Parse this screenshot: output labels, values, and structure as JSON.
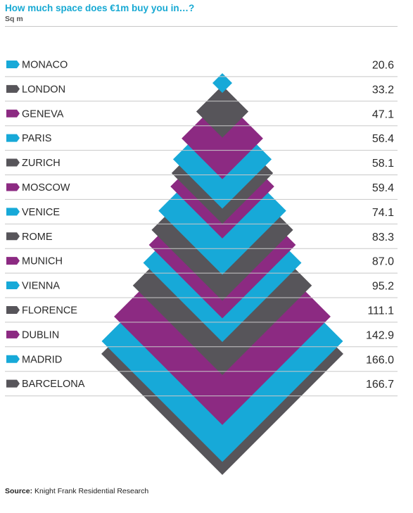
{
  "header": {
    "title": "How much space does €1m buy you in…?",
    "subtitle": "Sq m"
  },
  "footer": {
    "source_label": "Source:",
    "source_text": "Knight Frank Residential Research"
  },
  "colors": {
    "blue": "#17a9d8",
    "gray": "#57555a",
    "purple": "#8c2a82",
    "rule": "#c8c8c8"
  },
  "chart_data": {
    "type": "diamond-pictogram",
    "unit": "Sq m",
    "cities": [
      {
        "name": "MONACO",
        "value": 20.6,
        "color": "blue"
      },
      {
        "name": "LONDON",
        "value": 33.2,
        "color": "gray"
      },
      {
        "name": "GENEVA",
        "value": 47.1,
        "color": "purple"
      },
      {
        "name": "PARIS",
        "value": 56.4,
        "color": "blue"
      },
      {
        "name": "ZURICH",
        "value": 58.1,
        "color": "gray"
      },
      {
        "name": "MOSCOW",
        "value": 59.4,
        "color": "purple"
      },
      {
        "name": "VENICE",
        "value": 74.1,
        "color": "blue"
      },
      {
        "name": "ROME",
        "value": 83.3,
        "color": "gray"
      },
      {
        "name": "MUNICH",
        "value": 87.0,
        "color": "purple"
      },
      {
        "name": "VIENNA",
        "value": 95.2,
        "color": "blue"
      },
      {
        "name": "FLORENCE",
        "value": 111.1,
        "color": "gray"
      },
      {
        "name": "DUBLIN",
        "value": 142.9,
        "color": "purple"
      },
      {
        "name": "MADRID",
        "value": 166.0,
        "color": "blue"
      },
      {
        "name": "BARCELONA",
        "value": 166.7,
        "color": "gray"
      }
    ]
  }
}
